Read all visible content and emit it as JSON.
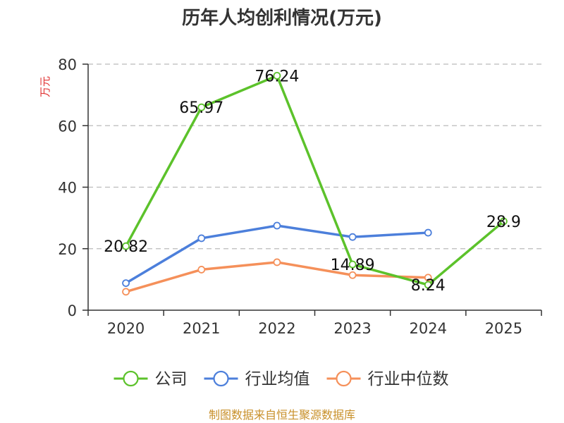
{
  "chart_data": {
    "type": "line",
    "title": "历年人均创利情况(万元)",
    "ylabel": "万元",
    "xlabel": "",
    "categories": [
      "2020",
      "2021",
      "2022",
      "2023",
      "2024",
      "2025"
    ],
    "ylim": [
      0,
      80
    ],
    "yticks": [
      "0",
      "20",
      "40",
      "60",
      "80"
    ],
    "grid": true,
    "legend_position": "bottom",
    "series": [
      {
        "name": "公司",
        "color": "#5cc22b",
        "values": [
          20.82,
          65.97,
          76.24,
          14.89,
          8.24,
          28.9
        ],
        "labels": [
          "20.82",
          "65.97",
          "76.24",
          "14.89",
          "8.24",
          "28.9"
        ]
      },
      {
        "name": "行业均值",
        "color": "#4c7fdb",
        "values": [
          8.8,
          23.4,
          27.5,
          23.8,
          25.2,
          null
        ]
      },
      {
        "name": "行业中位数",
        "color": "#f5905a",
        "values": [
          6.0,
          13.2,
          15.6,
          11.4,
          10.6,
          null
        ]
      }
    ]
  },
  "source_text": "制图数据来自恒生聚源数据库",
  "colors": {
    "ylabel": "#e03030",
    "source": "#c8902a",
    "grid": "#bbbbbb",
    "axis": "#333333"
  }
}
